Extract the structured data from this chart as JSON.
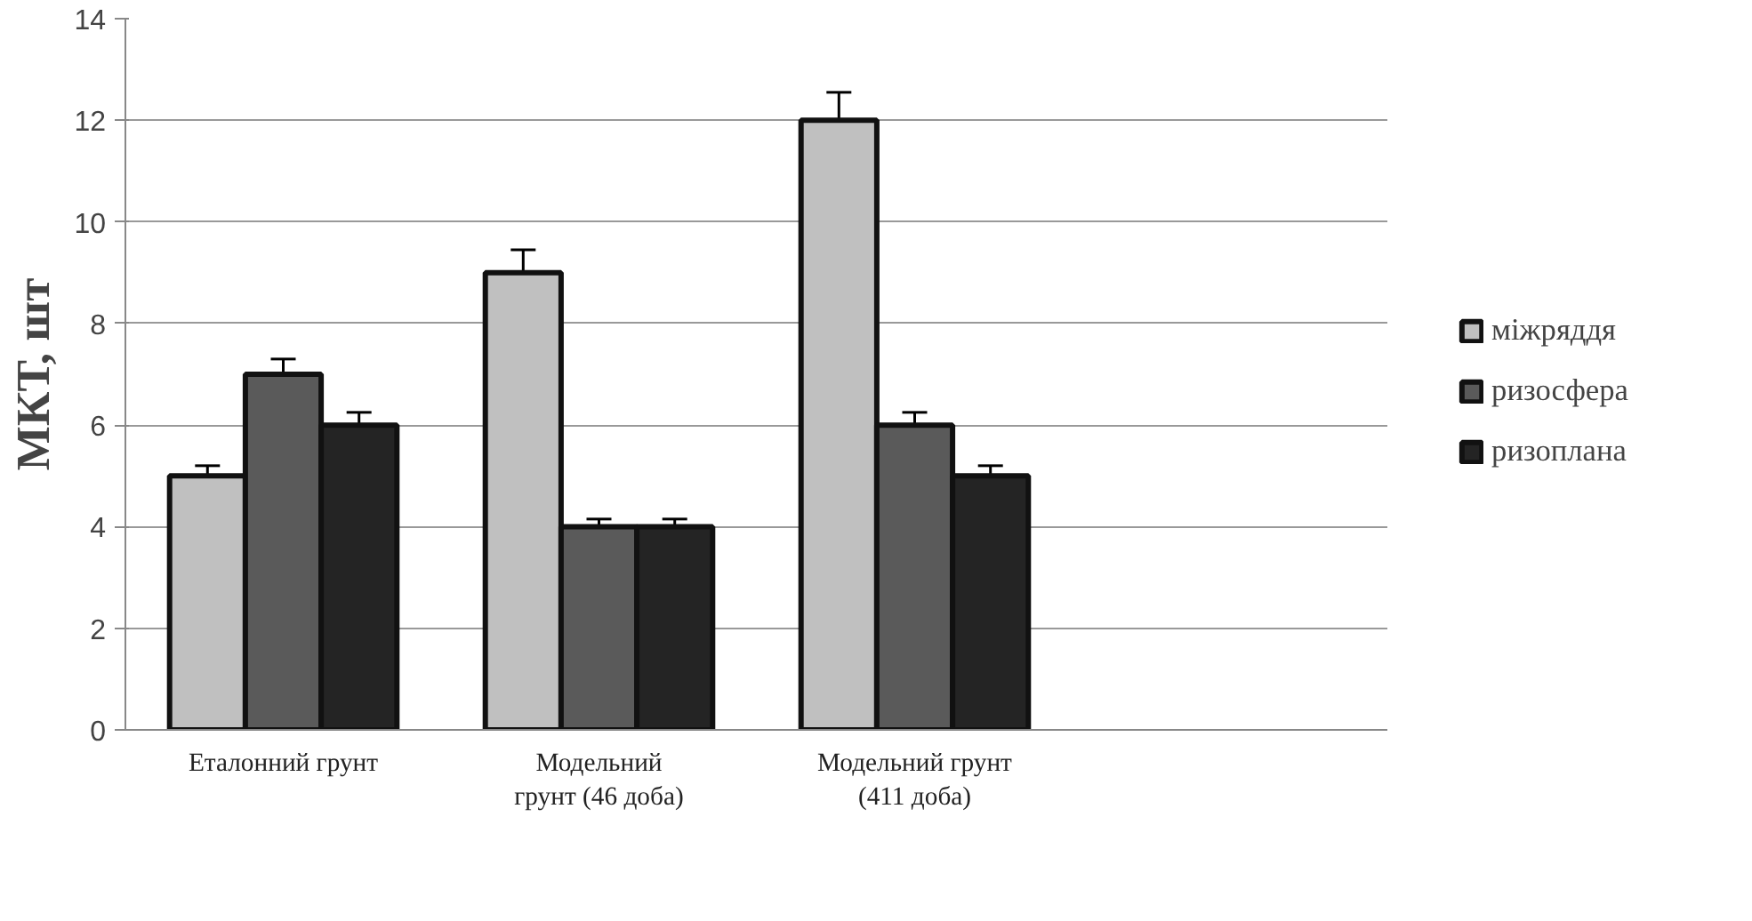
{
  "chart_data": {
    "type": "bar",
    "ylabel": "МКТ, шт",
    "categories": [
      "Еталонний грунт",
      "Модельний\nгрунт (46 доба)",
      "Модельний грунт\n(411 доба)",
      null
    ],
    "series": [
      {
        "name": "міжряддя",
        "color": "#c0c0c0",
        "values": [
          5,
          9,
          12,
          null
        ],
        "errors": [
          0.2,
          0.45,
          0.55,
          null
        ]
      },
      {
        "name": "ризосфера",
        "color": "#5a5a5a",
        "values": [
          7,
          4,
          6,
          null
        ],
        "errors": [
          0.3,
          0.15,
          0.25,
          null
        ]
      },
      {
        "name": "ризоплана",
        "color": "#242424",
        "values": [
          6,
          4,
          5,
          null
        ],
        "errors": [
          0.25,
          0.15,
          0.2,
          null
        ]
      }
    ],
    "ylim": [
      0,
      14
    ],
    "yticks": [
      0,
      2,
      4,
      6,
      8,
      10,
      12,
      14
    ],
    "grid": "y",
    "legend": "right"
  }
}
